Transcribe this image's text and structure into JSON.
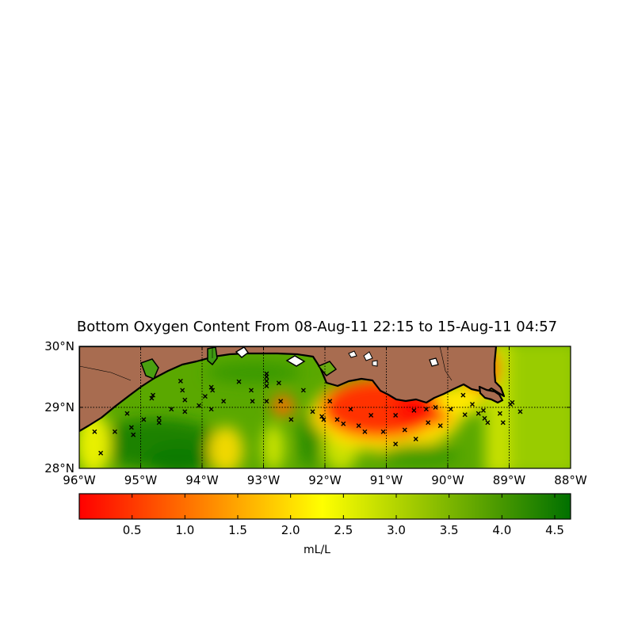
{
  "map": {
    "title": "Bottom Oxygen Content From 08-Aug-11 22:15 to 15-Aug-11 04:57",
    "lon_range": [
      -96,
      -88
    ],
    "lat_range": [
      28,
      30
    ],
    "lon_ticks": [
      {
        "value": -96,
        "label": "96°W"
      },
      {
        "value": -95,
        "label": "95°W"
      },
      {
        "value": -94,
        "label": "94°W"
      },
      {
        "value": -93,
        "label": "93°W"
      },
      {
        "value": -92,
        "label": "92°W"
      },
      {
        "value": -91,
        "label": "91°W"
      },
      {
        "value": -90,
        "label": "90°W"
      },
      {
        "value": -89,
        "label": "89°W"
      },
      {
        "value": -88,
        "label": "88°W"
      }
    ],
    "lat_ticks": [
      {
        "value": 28,
        "label": "28°N"
      },
      {
        "value": 29,
        "label": "29°N"
      },
      {
        "value": 30,
        "label": "30°N"
      }
    ],
    "land_color": "#a86c50",
    "colorbar": {
      "label": "mL/L",
      "range": [
        0.0,
        4.65
      ],
      "ticks": [
        {
          "value": 0.5,
          "label": "0.5"
        },
        {
          "value": 1.0,
          "label": "1.0"
        },
        {
          "value": 1.5,
          "label": "1.5"
        },
        {
          "value": 2.0,
          "label": "2.0"
        },
        {
          "value": 2.5,
          "label": "2.5"
        },
        {
          "value": 3.0,
          "label": "3.0"
        },
        {
          "value": 3.5,
          "label": "3.5"
        },
        {
          "value": 4.0,
          "label": "4.0"
        },
        {
          "value": 4.5,
          "label": "4.5"
        }
      ],
      "stops": [
        {
          "value": 0.0,
          "color": "#ff0000"
        },
        {
          "value": 2.3,
          "color": "#ffff00"
        },
        {
          "value": 4.65,
          "color": "#007000"
        }
      ]
    },
    "stations": [
      [
        -95.75,
        28.6
      ],
      [
        -95.65,
        28.25
      ],
      [
        -95.42,
        28.6
      ],
      [
        -95.22,
        28.9
      ],
      [
        -95.15,
        28.67
      ],
      [
        -95.12,
        28.55
      ],
      [
        -94.95,
        28.8
      ],
      [
        -94.82,
        29.15
      ],
      [
        -94.8,
        29.2
      ],
      [
        -94.7,
        28.82
      ],
      [
        -94.7,
        28.75
      ],
      [
        -94.5,
        28.97
      ],
      [
        -94.35,
        29.43
      ],
      [
        -94.32,
        29.28
      ],
      [
        -94.28,
        29.12
      ],
      [
        -94.28,
        28.93
      ],
      [
        -94.05,
        29.03
      ],
      [
        -93.95,
        29.18
      ],
      [
        -93.85,
        28.97
      ],
      [
        -93.85,
        29.33
      ],
      [
        -93.83,
        29.28
      ],
      [
        -93.65,
        29.1
      ],
      [
        -93.4,
        29.42
      ],
      [
        -93.2,
        29.28
      ],
      [
        -93.18,
        29.1
      ],
      [
        -92.95,
        29.55
      ],
      [
        -92.95,
        29.5
      ],
      [
        -92.95,
        29.43
      ],
      [
        -92.95,
        29.35
      ],
      [
        -92.95,
        29.1
      ],
      [
        -92.75,
        29.4
      ],
      [
        -92.72,
        29.1
      ],
      [
        -92.55,
        28.8
      ],
      [
        -92.35,
        29.28
      ],
      [
        -92.2,
        28.93
      ],
      [
        -92.05,
        28.85
      ],
      [
        -92.02,
        28.8
      ],
      [
        -91.92,
        29.1
      ],
      [
        -91.8,
        28.8
      ],
      [
        -91.7,
        28.73
      ],
      [
        -91.58,
        28.97
      ],
      [
        -91.45,
        28.7
      ],
      [
        -91.35,
        28.6
      ],
      [
        -91.25,
        28.87
      ],
      [
        -91.05,
        28.6
      ],
      [
        -90.85,
        28.87
      ],
      [
        -90.85,
        28.4
      ],
      [
        -90.7,
        28.63
      ],
      [
        -90.55,
        28.95
      ],
      [
        -90.52,
        28.48
      ],
      [
        -90.35,
        28.97
      ],
      [
        -90.32,
        28.75
      ],
      [
        -90.2,
        29.0
      ],
      [
        -90.12,
        28.7
      ],
      [
        -89.95,
        28.97
      ],
      [
        -89.75,
        29.2
      ],
      [
        -89.72,
        28.88
      ],
      [
        -89.6,
        29.05
      ],
      [
        -89.5,
        28.9
      ],
      [
        -89.42,
        28.95
      ],
      [
        -89.4,
        28.82
      ],
      [
        -89.35,
        28.75
      ],
      [
        -89.15,
        28.9
      ],
      [
        -89.1,
        28.75
      ],
      [
        -88.98,
        29.05
      ],
      [
        -88.95,
        29.08
      ],
      [
        -88.82,
        28.93
      ]
    ]
  }
}
